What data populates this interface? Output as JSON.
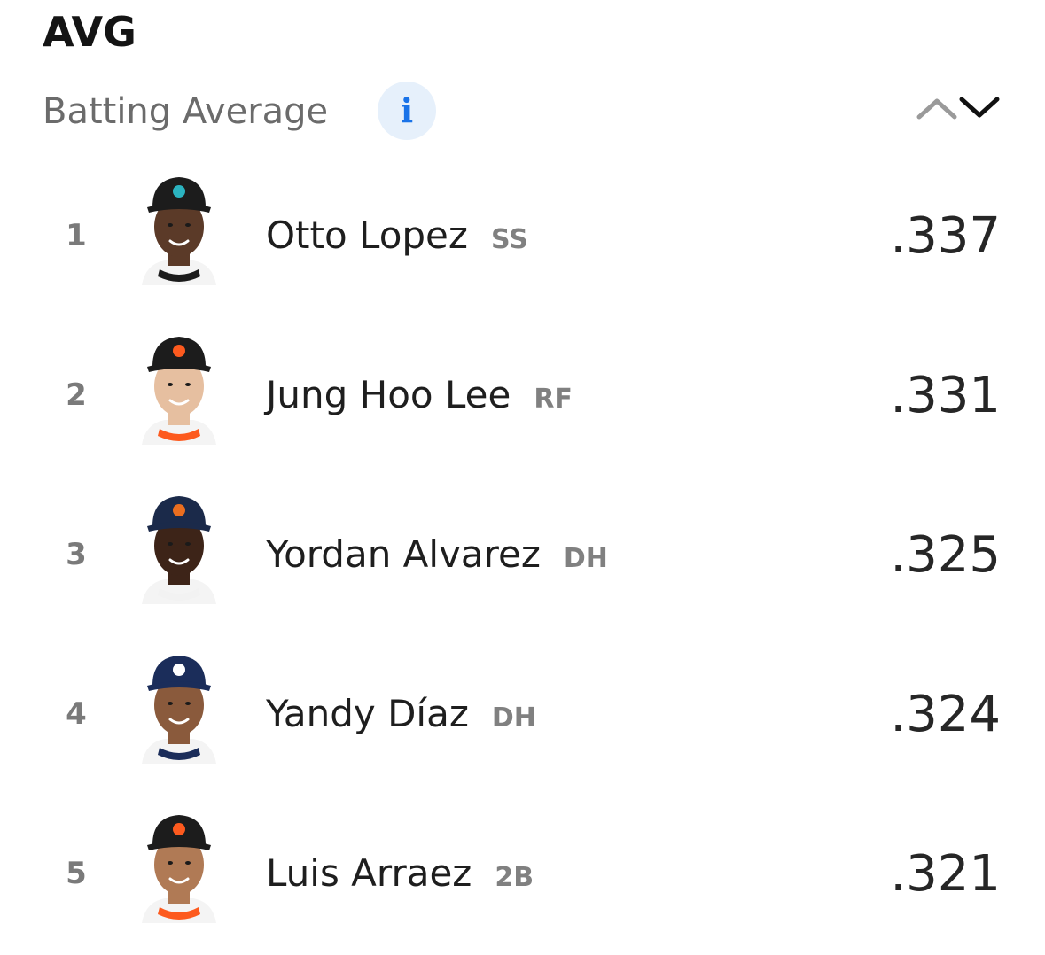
{
  "header": {
    "stat_code": "AVG",
    "stat_name": "Batting Average",
    "info_label": "i"
  },
  "colors": {
    "info_bg": "#e6f0fb",
    "info_fg": "#1a73e8",
    "text_primary": "#1e1e1e",
    "text_secondary": "#6b6b6b"
  },
  "leaders": [
    {
      "rank": "1",
      "name": "Otto Lopez",
      "position": "SS",
      "value": ".337",
      "cap_color": "#1c1c1c",
      "cap_logo_color": "#2bb3c0",
      "skin": "#5b3a28",
      "jersey": "#1c1c1c",
      "avatar": "player-headshot"
    },
    {
      "rank": "2",
      "name": "Jung Hoo Lee",
      "position": "RF",
      "value": ".331",
      "cap_color": "#1c1c1c",
      "cap_logo_color": "#fd5a1e",
      "skin": "#e6bfa0",
      "jersey": "#fd5a1e",
      "avatar": "player-headshot"
    },
    {
      "rank": "3",
      "name": "Yordan Alvarez",
      "position": "DH",
      "value": ".325",
      "cap_color": "#1b2a4a",
      "cap_logo_color": "#eb6e1f",
      "skin": "#3d2418",
      "jersey": "#f2f2f2",
      "avatar": "player-headshot"
    },
    {
      "rank": "4",
      "name": "Yandy Díaz",
      "position": "DH",
      "value": ".324",
      "cap_color": "#1b2d5a",
      "cap_logo_color": "#ffffff",
      "skin": "#8a5a3c",
      "jersey": "#1b2d5a",
      "avatar": "player-headshot"
    },
    {
      "rank": "5",
      "name": "Luis Arraez",
      "position": "2B",
      "value": ".321",
      "cap_color": "#1c1c1c",
      "cap_logo_color": "#fd5a1e",
      "skin": "#b07a55",
      "jersey": "#fd5a1e",
      "avatar": "player-headshot"
    }
  ]
}
